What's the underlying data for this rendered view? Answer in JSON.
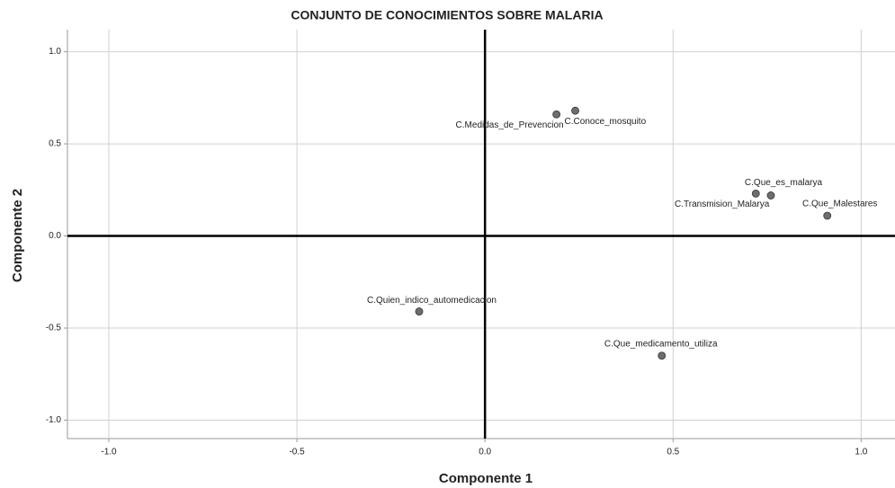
{
  "chart_data": {
    "type": "scatter",
    "title": "CONJUNTO DE CONOCIMIENTOS SOBRE MALARIA",
    "x_label": "Componente 1",
    "y_label": "Componente 2",
    "labels": [
      "C.Medidas_de_Prevencion",
      "C.Conoce_mosquito",
      "C.Que_es_malarya",
      "C.Transmision_Malarya",
      "C.Que_Malestares",
      "C.Quien_indico_automedicacion",
      "C.Que_medicamento_utiliza"
    ],
    "x": [
      0.19,
      0.24,
      0.76,
      0.72,
      0.91,
      -0.175,
      0.47
    ],
    "y": [
      0.66,
      0.68,
      0.22,
      0.23,
      0.11,
      -0.41,
      -0.65
    ],
    "color": "#6e6e6e",
    "xlim": [
      -1.11,
      1.09
    ],
    "ylim": [
      -1.1,
      1.12
    ],
    "xticks": [
      {
        "value": -1,
        "label": "-1.0"
      },
      -0.5,
      {
        "value": 0,
        "label": "0.0"
      },
      0.5,
      {
        "value": 1,
        "label": "1.0"
      }
    ],
    "yticks": [
      {
        "value": -1,
        "label": "-1.0"
      },
      -0.5,
      {
        "value": 0,
        "label": "0.0"
      },
      0.5,
      {
        "value": 1,
        "label": "1.0"
      }
    ],
    "grid": true
  }
}
